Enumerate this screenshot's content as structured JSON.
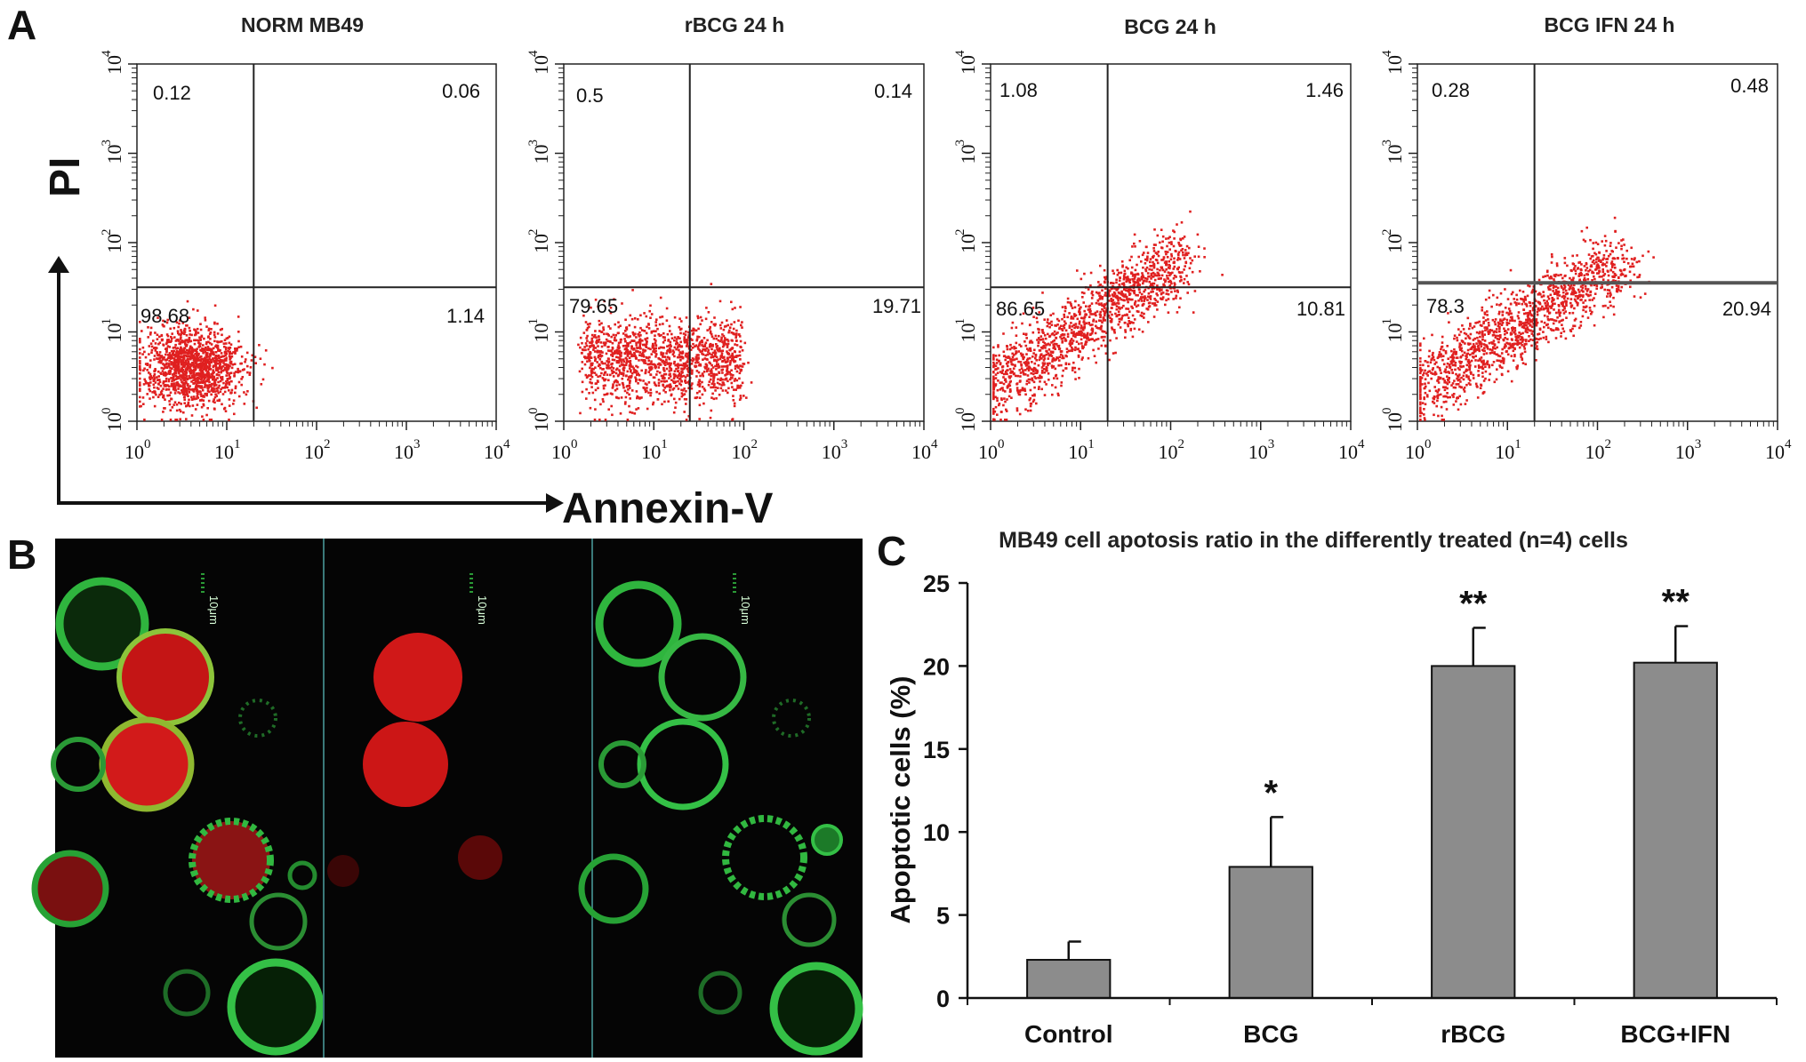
{
  "panels": {
    "a": "A",
    "b": "B",
    "c": "C"
  },
  "axes_labels": {
    "y": "PI",
    "x": "Annexin-V"
  },
  "flow_plots": [
    {
      "title": "NORM MB49",
      "q_ul": "0.12",
      "q_ur": "0.06",
      "q_ll": "98.68",
      "q_lr": "1.14",
      "gate_x": 1.3,
      "gate_y": 1.5,
      "cluster": "normal"
    },
    {
      "title": "rBCG 24 h",
      "q_ul": "0.5",
      "q_ur": "0.14",
      "q_ll": "79.65",
      "q_lr": "19.71",
      "gate_x": 1.4,
      "gate_y": 1.5,
      "cluster": "spread"
    },
    {
      "title": "BCG 24 h",
      "q_ul": "1.08",
      "q_ur": "1.46",
      "q_ll": "86.65",
      "q_lr": "10.81",
      "gate_x": 1.3,
      "gate_y": 1.5,
      "cluster": "diagonal"
    },
    {
      "title": "BCG IFN 24 h",
      "q_ul": "0.28",
      "q_ur": "0.48",
      "q_ll": "78.3",
      "q_lr": "20.94",
      "gate_x": 1.3,
      "gate_y": 1.55,
      "cluster": "diagonal2"
    }
  ],
  "flow_ticks": {
    "base": "10",
    "exponents": [
      "0",
      "1",
      "2",
      "3",
      "4"
    ]
  },
  "microscopy": {
    "scale_label": "10μm",
    "colors": {
      "background": "#050505",
      "annexin": "#3cc24a",
      "pi": "#e01818"
    }
  },
  "chart_data": {
    "type": "bar",
    "title": "MB49 cell apotosis ratio in the differently treated  (n=4) cells",
    "xlabel": "",
    "ylabel": "Apoptotic cells (%)",
    "categories": [
      "Control",
      "BCG",
      "rBCG",
      "BCG+IFN"
    ],
    "values": [
      2.3,
      7.9,
      20.0,
      20.2
    ],
    "errors": [
      1.1,
      3.0,
      2.3,
      2.2
    ],
    "significance": [
      "",
      "*",
      "**",
      "**"
    ],
    "ylim": [
      0,
      25
    ],
    "yticks": [
      "0",
      "5",
      "10",
      "15",
      "20",
      "25"
    ],
    "bar_color": "#8c8c8c"
  }
}
